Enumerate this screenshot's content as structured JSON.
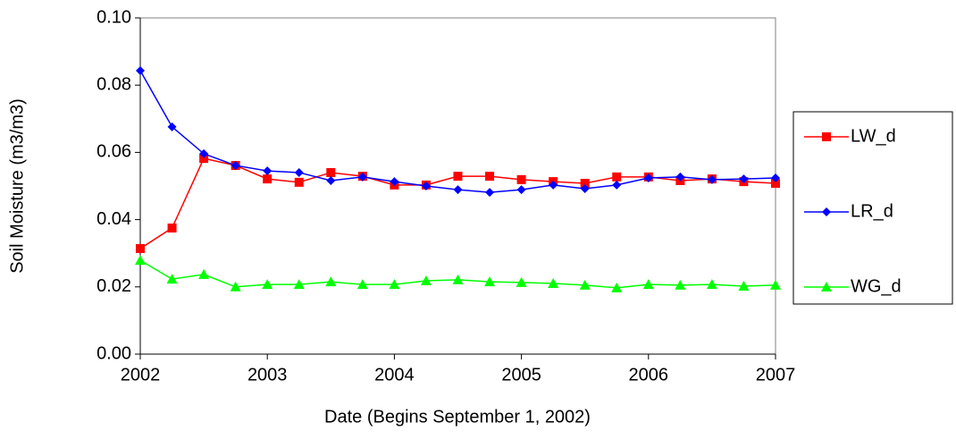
{
  "chart_data": {
    "type": "line",
    "xlabel": "Date (Begins September 1, 2002)",
    "ylabel": "Soil Moisture (m3/m3)",
    "x": [
      2002,
      2002.25,
      2002.5,
      2002.75,
      2003,
      2003.25,
      2003.5,
      2003.75,
      2004,
      2004.25,
      2004.5,
      2004.75,
      2005,
      2005.25,
      2005.5,
      2005.75,
      2006,
      2006.25,
      2006.5,
      2006.75,
      2007
    ],
    "series": [
      {
        "name": "LW_d",
        "color": "#ff0000",
        "marker": "square",
        "values": [
          0.0314,
          0.0375,
          0.0582,
          0.0561,
          0.0521,
          0.0511,
          0.054,
          0.0529,
          0.0503,
          0.0503,
          0.0529,
          0.0529,
          0.0519,
          0.0513,
          0.0508,
          0.0527,
          0.0527,
          0.0516,
          0.0521,
          0.0513,
          0.0508
        ]
      },
      {
        "name": "LR_d",
        "color": "#0000ff",
        "marker": "diamond",
        "values": [
          0.0843,
          0.0676,
          0.0596,
          0.0561,
          0.0545,
          0.054,
          0.0516,
          0.0527,
          0.0513,
          0.05,
          0.0489,
          0.0481,
          0.0489,
          0.0503,
          0.0492,
          0.0503,
          0.0524,
          0.0527,
          0.0519,
          0.0521,
          0.0524
        ]
      },
      {
        "name": "WG_d",
        "color": "#00ff00",
        "marker": "triangle",
        "values": [
          0.0279,
          0.0223,
          0.0237,
          0.02,
          0.0207,
          0.0207,
          0.0215,
          0.0207,
          0.0207,
          0.0218,
          0.0221,
          0.0215,
          0.0213,
          0.021,
          0.0205,
          0.0197,
          0.0207,
          0.0205,
          0.0207,
          0.0202,
          0.0205
        ]
      }
    ],
    "xlim": [
      2002,
      2007
    ],
    "xticks": [
      2002,
      2003,
      2004,
      2005,
      2006,
      2007
    ],
    "ylim": [
      0,
      0.1
    ],
    "yticks": [
      {
        "value": 0,
        "label": "0.00"
      },
      {
        "value": 0.02,
        "label": "0.02"
      },
      {
        "value": 0.04,
        "label": "0.04"
      },
      {
        "value": 0.06,
        "label": "0.06"
      },
      {
        "value": 0.08,
        "label": "0.08"
      },
      {
        "value": 0.1,
        "label": "0.10"
      }
    ],
    "legend": "right"
  }
}
